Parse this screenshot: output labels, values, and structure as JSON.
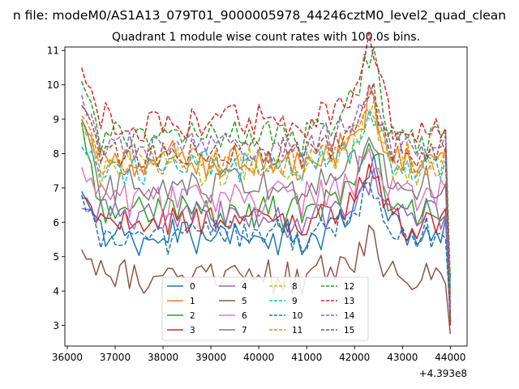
{
  "figure": {
    "suptitle": "n file: modeM0/AS1A13_079T01_9000005978_44246cztM0_level2_quad_clean",
    "offset_label": "+4.393e8"
  },
  "chart_data": {
    "type": "line",
    "title": "Quadrant 1 module wise count rates with 100.0s bins.",
    "xlabel": "",
    "ylabel": "",
    "x_offset": 439300000,
    "xlim": [
      35950,
      44350
    ],
    "ylim": [
      2.4,
      11.1
    ],
    "x_ticks": [
      36000,
      37000,
      38000,
      39000,
      40000,
      41000,
      42000,
      43000,
      44000
    ],
    "y_ticks": [
      3,
      4,
      5,
      6,
      7,
      8,
      9,
      10,
      11
    ],
    "grid": false,
    "legend": {
      "location": "lower-center",
      "columns": 4
    },
    "series": [
      {
        "name": "0",
        "color": "#1f77b4",
        "style": "solid",
        "base": 5.6,
        "start": 6.9,
        "end": 3.1,
        "peak": 1.8
      },
      {
        "name": "1",
        "color": "#ff7f0e",
        "style": "solid",
        "base": 7.8,
        "start": 9.0,
        "end": 3.9,
        "peak": 1.5
      },
      {
        "name": "2",
        "color": "#2ca02c",
        "style": "solid",
        "base": 6.3,
        "start": 8.9,
        "end": 4.4,
        "peak": 1.7
      },
      {
        "name": "3",
        "color": "#d62728",
        "style": "solid",
        "base": 6.0,
        "start": 6.7,
        "end": 3.1,
        "peak": 1.5
      },
      {
        "name": "4",
        "color": "#9467bd",
        "style": "solid",
        "base": 6.1,
        "start": 6.4,
        "end": 3.3,
        "peak": 1.0
      },
      {
        "name": "5",
        "color": "#8c564b",
        "style": "solid",
        "base": 4.4,
        "start": 5.2,
        "end": 2.75,
        "peak": 1.0
      },
      {
        "name": "6",
        "color": "#e377c2",
        "style": "solid",
        "base": 6.7,
        "start": 7.6,
        "end": 3.9,
        "peak": 1.0
      },
      {
        "name": "7",
        "color": "#7f7f7f",
        "style": "solid",
        "base": 7.1,
        "start": 9.0,
        "end": 4.0,
        "peak": 1.3
      },
      {
        "name": "8",
        "color": "#bcbd22",
        "style": "dashed",
        "base": 7.6,
        "start": 8.8,
        "end": 4.0,
        "peak": 1.4
      },
      {
        "name": "9",
        "color": "#17becf",
        "style": "dashed",
        "base": 7.6,
        "start": 8.2,
        "end": 4.1,
        "peak": 1.2
      },
      {
        "name": "10",
        "color": "#1f77b4",
        "style": "dashed",
        "base": 5.6,
        "start": 6.8,
        "end": 3.3,
        "peak": 1.2
      },
      {
        "name": "11",
        "color": "#ff7f0e",
        "style": "dashed",
        "base": 7.8,
        "start": 9.1,
        "end": 3.6,
        "peak": 1.5
      },
      {
        "name": "12",
        "color": "#2ca02c",
        "style": "dashed",
        "base": 8.5,
        "start": 10.1,
        "end": 4.3,
        "peak": 2.0
      },
      {
        "name": "13",
        "color": "#d62728",
        "style": "dashed",
        "base": 8.9,
        "start": 10.5,
        "end": 3.0,
        "peak": 1.8
      },
      {
        "name": "14",
        "color": "#9467bd",
        "style": "dashed",
        "base": 8.2,
        "start": 9.7,
        "end": 3.5,
        "peak": 1.5
      },
      {
        "name": "15",
        "color": "#8c564b",
        "style": "dashed",
        "base": 8.0,
        "start": 9.4,
        "end": 3.2,
        "peak": 1.4
      }
    ],
    "x_start": 36300,
    "x_end": 44000,
    "bin": 100,
    "peak_center": 42350
  }
}
